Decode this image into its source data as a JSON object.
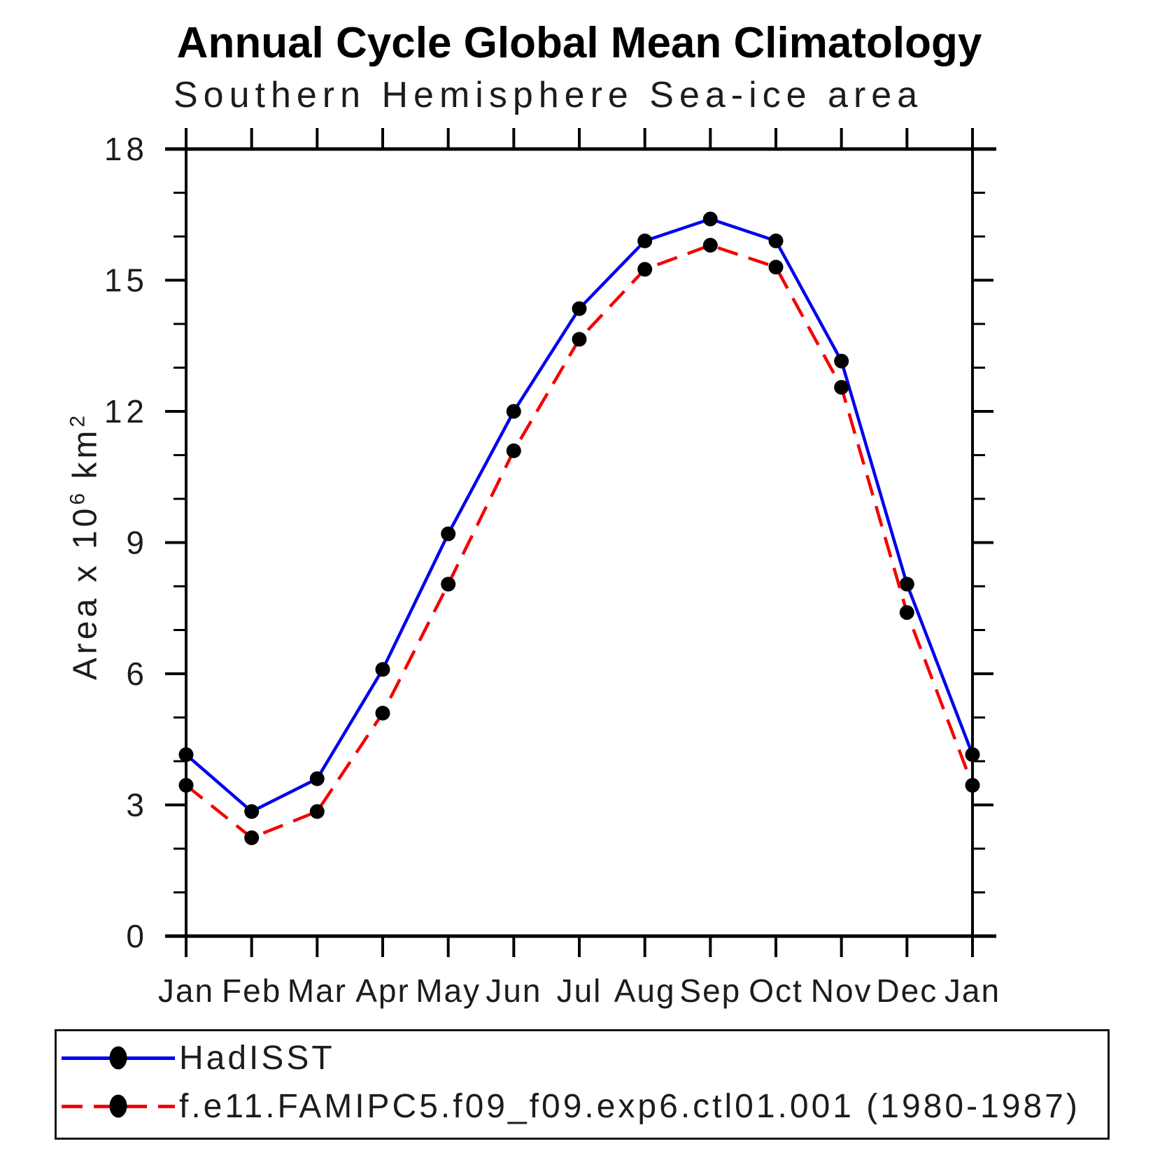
{
  "title": "Annual Cycle Global Mean Climatology",
  "subtitle": "Southern Hemisphere Sea-ice area",
  "y_axis": {
    "label_prefix": "Area x 10",
    "label_sup1": "6",
    "label_mid": " km",
    "label_sup2": "2",
    "tick_labels": [
      "0",
      "3",
      "6",
      "9",
      "12",
      "15",
      "18"
    ],
    "min": 0,
    "max": 18,
    "major_step": 3,
    "minor_step": 1
  },
  "x_axis": {
    "tick_labels": [
      "Jan",
      "Feb",
      "Mar",
      "Apr",
      "May",
      "Jun",
      "Jul",
      "Aug",
      "Sep",
      "Oct",
      "Nov",
      "Dec",
      "Jan"
    ]
  },
  "chart_data": {
    "type": "line",
    "title": "Annual Cycle Global Mean Climatology",
    "subtitle": "Southern Hemisphere Sea-ice area",
    "xlabel": "",
    "ylabel": "Area x 10^6 km^2",
    "ylim": [
      0,
      18
    ],
    "y_major_ticks": [
      0,
      3,
      6,
      9,
      12,
      15,
      18
    ],
    "y_minor_step": 1,
    "grid": false,
    "legend_position": "bottom",
    "categories": [
      "Jan",
      "Feb",
      "Mar",
      "Apr",
      "May",
      "Jun",
      "Jul",
      "Aug",
      "Sep",
      "Oct",
      "Nov",
      "Dec",
      "Jan"
    ],
    "series": [
      {
        "name": "HadISST",
        "color": "#0000ee",
        "line_style": "solid",
        "marker": "filled-circle",
        "marker_color": "#000000",
        "values": [
          4.15,
          2.85,
          3.6,
          6.1,
          9.2,
          12.0,
          14.35,
          15.9,
          16.4,
          15.9,
          13.15,
          8.05,
          4.15
        ]
      },
      {
        "name": "f.e11.FAMIPC5.f09_f09.exp6.ctl01.001 (1980-1987)",
        "color": "#f50000",
        "line_style": "dashed",
        "marker": "filled-circle",
        "marker_color": "#000000",
        "values": [
          3.45,
          2.25,
          2.85,
          5.1,
          8.05,
          11.1,
          13.65,
          15.25,
          15.8,
          15.3,
          12.55,
          7.4,
          3.45
        ]
      }
    ]
  },
  "legend": {
    "items": [
      {
        "label": "HadISST"
      },
      {
        "label": "f.e11.FAMIPC5.f09_f09.exp6.ctl01.001 (1980-1987)"
      }
    ]
  }
}
